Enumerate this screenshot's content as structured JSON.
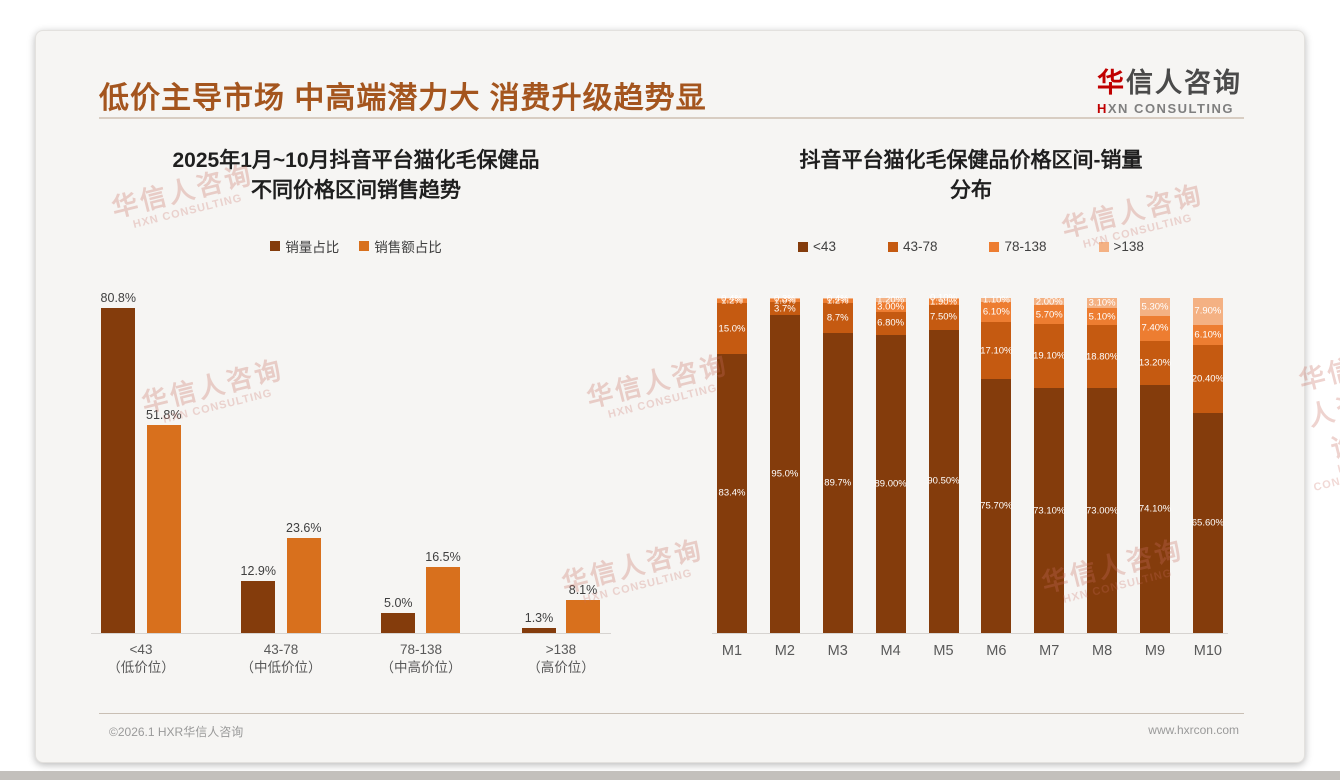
{
  "header": {
    "title": "低价主导市场 中高端潜力大 消费升级趋势显",
    "logo": {
      "cn_first": "华",
      "cn_rest": "信人咨询",
      "en_first": "H",
      "en_rest": "XN CONSULTING"
    }
  },
  "watermark": {
    "cn": "华信人咨询",
    "en": "HXN CONSULTING"
  },
  "footer": {
    "copyright": "©2026.1 HXR华信人咨询",
    "website": "www.hxrcon.com"
  },
  "colors": {
    "title_brown": "#A4551E",
    "logo_red": "#C00000",
    "dark_brown": "#843C0C",
    "mid_brown": "#C55A11",
    "orange": "#ED7D31",
    "peach": "#F4B183"
  },
  "chart_data": [
    {
      "type": "bar",
      "title": "2025年1月~10月抖音平台猫化毛保健品\n不同价格区间销售趋势",
      "categories": [
        "<43\n（低价位）",
        "43-78\n（中低价位）",
        "78-138\n（中高价位）",
        ">138\n（高价位）"
      ],
      "series": [
        {
          "name": "销量占比",
          "color": "#843C0C",
          "values": [
            80.8,
            12.9,
            5.0,
            1.3
          ],
          "labels": [
            "80.8%",
            "12.9%",
            "5.0%",
            "1.3%"
          ]
        },
        {
          "name": "销售额占比",
          "color": "#D8701D",
          "values": [
            51.8,
            23.6,
            16.5,
            8.1
          ],
          "labels": [
            "51.8%",
            "23.6%",
            "16.5%",
            "8.1%"
          ]
        }
      ],
      "ylabel": "",
      "xlabel": "",
      "ylim": [
        0,
        100
      ],
      "grid": false,
      "legend_position": "top",
      "value_suffix": "%"
    },
    {
      "type": "stacked-bar-100",
      "title": "抖音平台猫化毛保健品价格区间-销量\n分布",
      "categories": [
        "M1",
        "M2",
        "M3",
        "M4",
        "M5",
        "M6",
        "M7",
        "M8",
        "M9",
        "M10"
      ],
      "series": [
        {
          "name": "<43",
          "color": "#843C0C",
          "values": [
            83.4,
            95.0,
            89.7,
            89.0,
            90.5,
            75.7,
            73.1,
            73.0,
            74.1,
            65.6
          ],
          "labels": [
            "83.4%",
            "95.0%",
            "89.7%",
            "89.00%",
            "90.50%",
            "75.70%",
            "73.10%",
            "73.00%",
            "74.10%",
            "65.60%"
          ]
        },
        {
          "name": "43-78",
          "color": "#C55A11",
          "values": [
            15.0,
            3.7,
            8.7,
            6.8,
            7.5,
            17.1,
            19.1,
            18.8,
            13.2,
            20.4
          ],
          "labels": [
            "15.0%",
            "3.7%",
            "8.7%",
            "6.80%",
            "7.50%",
            "17.10%",
            "19.10%",
            "18.80%",
            "13.20%",
            "20.40%"
          ]
        },
        {
          "name": "78-138",
          "color": "#ED7D31",
          "values": [
            1.2,
            1.0,
            1.2,
            3.0,
            1.9,
            6.1,
            5.7,
            5.1,
            7.4,
            6.1
          ],
          "labels": [
            "1.2%",
            "1.0%",
            "1.2%",
            "3.00%",
            "1.90%",
            "6.10%",
            "5.70%",
            "5.10%",
            "7.40%",
            "6.10%"
          ]
        },
        {
          "name": ">138",
          "color": "#F4B183",
          "values": [
            0.4,
            0.3,
            0.4,
            1.2,
            0.1,
            1.1,
            2.0,
            3.1,
            5.3,
            7.9
          ],
          "labels": [
            "0.4%",
            "0.3%",
            "0.4%",
            "1.20%",
            "0.10%",
            "1.10%",
            "2.00%",
            "3.10%",
            "5.30%",
            "7.90%"
          ]
        }
      ],
      "ylabel": "",
      "xlabel": "",
      "ylim": [
        0,
        100
      ],
      "grid": false,
      "legend_position": "top",
      "value_suffix": "%"
    }
  ]
}
